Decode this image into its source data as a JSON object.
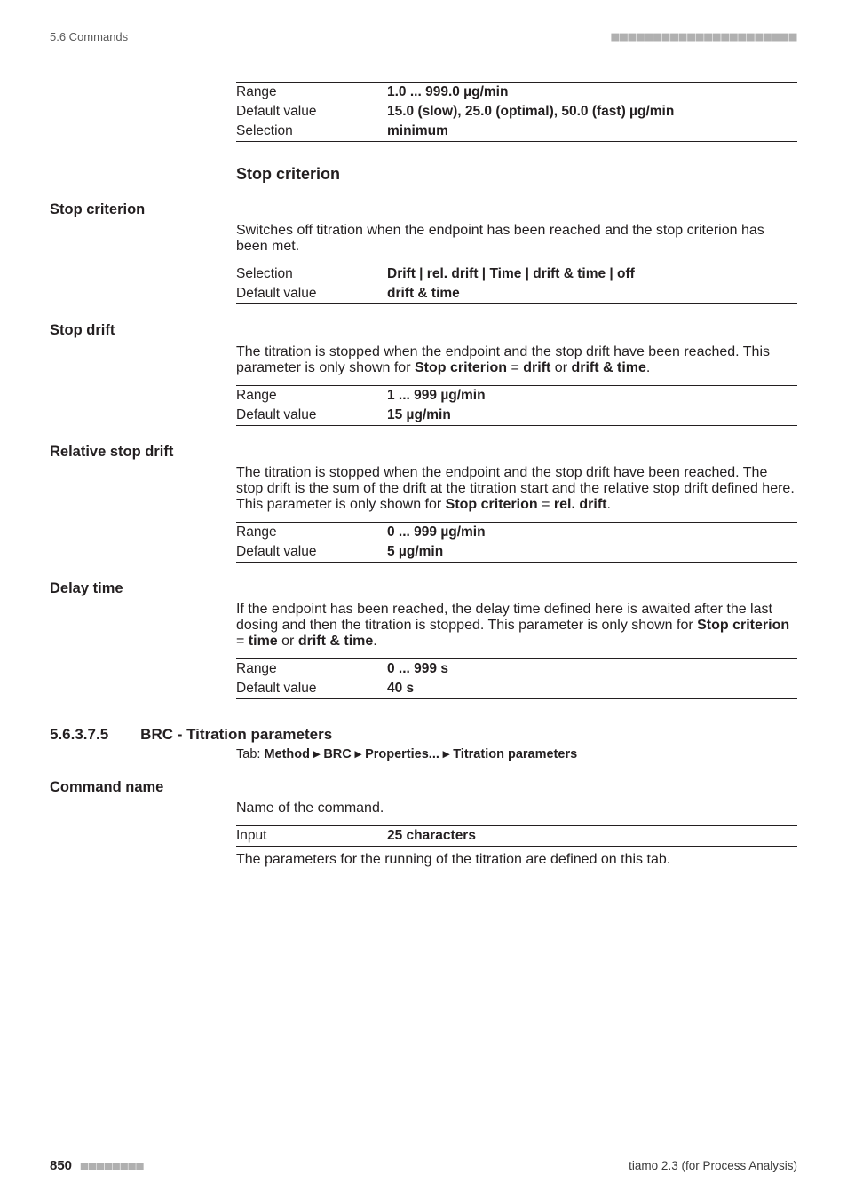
{
  "header": {
    "section": "5.6 Commands",
    "dashes": "■■■■■■■■■■■■■■■■■■■■■■"
  },
  "top_table": {
    "rows": [
      {
        "key": "Range",
        "val": "1.0 ... 999.0 µg/min"
      },
      {
        "key": "Default value",
        "val": "15.0 (slow), 25.0 (optimal), 50.0 (fast) µg/min"
      },
      {
        "key": "Selection",
        "val": "minimum"
      }
    ]
  },
  "stop_criterion_section": {
    "heading": "Stop criterion",
    "name": "Stop criterion",
    "desc": "Switches off titration when the endpoint has been reached and the stop criterion has been met.",
    "rows": [
      {
        "key": "Selection",
        "val": "Drift | rel. drift | Time | drift & time | off"
      },
      {
        "key": "Default value",
        "val": "drift & time"
      }
    ]
  },
  "stop_drift_section": {
    "name": "Stop drift",
    "desc_parts": {
      "p1": "The titration is stopped when the endpoint and the stop drift have been reached. This parameter is only shown for ",
      "b1": "Stop criterion",
      "p2": " = ",
      "b2": "drift",
      "p3": " or ",
      "b3": "drift & time",
      "p4": "."
    },
    "rows": [
      {
        "key": "Range",
        "val": "1 ... 999 µg/min"
      },
      {
        "key": "Default value",
        "val": "15 µg/min"
      }
    ]
  },
  "relative_stop_drift_section": {
    "name": "Relative stop drift",
    "desc_parts": {
      "p1": "The titration is stopped when the endpoint and the stop drift have been reached. The stop drift is the sum of the drift at the titration start and the relative stop drift defined here. This parameter is only shown for ",
      "b1": "Stop criterion",
      "p2": " = ",
      "b2": "rel. drift",
      "p3": "."
    },
    "rows": [
      {
        "key": "Range",
        "val": "0 ... 999 µg/min"
      },
      {
        "key": "Default value",
        "val": "5 µg/min"
      }
    ]
  },
  "delay_time_section": {
    "name": "Delay time",
    "desc_parts": {
      "p1": "If the endpoint has been reached, the delay time defined here is awaited after the last dosing and then the titration is stopped. This parameter is only shown for ",
      "b1": "Stop criterion",
      "p2": " = ",
      "b2": "time",
      "p3": " or ",
      "b3": "drift & time",
      "p4": "."
    },
    "rows": [
      {
        "key": "Range",
        "val": "0 ... 999 s"
      },
      {
        "key": "Default value",
        "val": "40 s"
      }
    ]
  },
  "brc_section": {
    "number": "5.6.3.7.5",
    "title": "BRC - Titration parameters",
    "tab_prefix": "Tab: ",
    "tab_bold": "Method ▸ BRC ▸ Properties... ▸ Titration parameters"
  },
  "command_name_section": {
    "name": "Command name",
    "desc": "Name of the command.",
    "rows": [
      {
        "key": "Input",
        "val": "25 characters"
      }
    ],
    "trailing": "The parameters for the running of the titration are defined on this tab."
  },
  "footer": {
    "page": "850",
    "dashes": "■■■■■■■■",
    "product": "tiamo 2.3 (for Process Analysis)"
  }
}
